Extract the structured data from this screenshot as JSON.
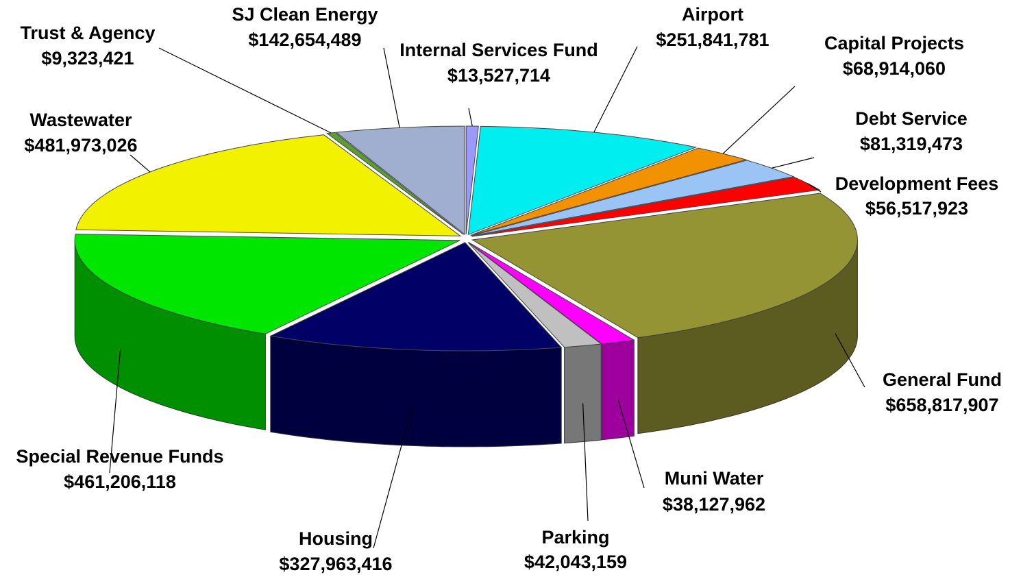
{
  "chart_data": {
    "type": "pie3d",
    "categories": [
      "Internal Services Fund",
      "Airport",
      "Capital Projects",
      "Debt Service",
      "Development Fees",
      "General Fund",
      "Muni Water",
      "Parking",
      "Housing",
      "Special Revenue Funds",
      "Wastewater",
      "Trust & Agency",
      "SJ Clean Energy"
    ],
    "values": [
      13527714,
      251841781,
      68914060,
      81319473,
      56517923,
      658817907,
      38127962,
      42043159,
      327963416,
      461206118,
      481973026,
      9323421,
      142654489
    ],
    "value_labels": [
      "$13,527,714",
      "$251,841,781",
      "$68,914,060",
      "$81,319,473",
      "$56,517,923",
      "$658,817,907",
      "$38,127,962",
      "$42,043,159",
      "$327,963,416",
      "$461,206,118",
      "$481,973,026",
      "$9,323,421",
      "$142,654,489"
    ],
    "colors": [
      "#9999ff",
      "#00eef0",
      "#f39200",
      "#99c4f5",
      "#ff0000",
      "#949434",
      "#ff00ff",
      "#c0c0c0",
      "#000066",
      "#00e600",
      "#f2f200",
      "#5aa030",
      "#a0aed0"
    ]
  }
}
